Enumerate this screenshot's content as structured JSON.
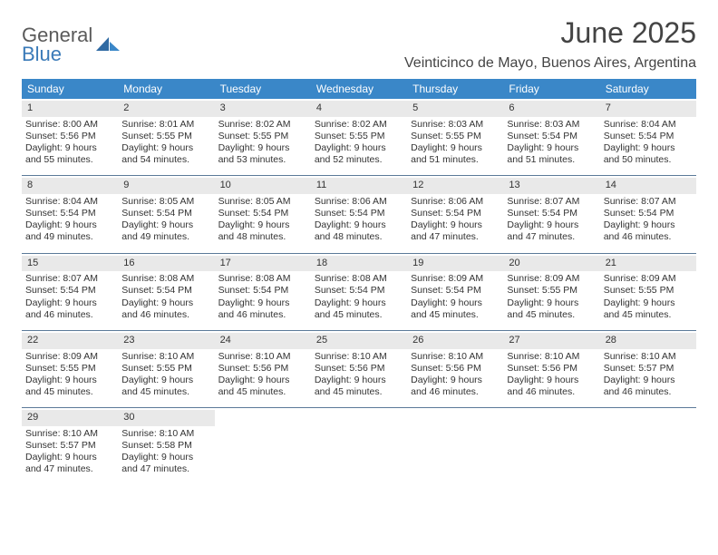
{
  "brand": {
    "line1": "General",
    "line2": "Blue",
    "color_gray": "#5a5a5a",
    "color_blue": "#3a7ab8"
  },
  "title": "June 2025",
  "location": "Veinticinco de Mayo, Buenos Aires, Argentina",
  "colors": {
    "header_bg": "#3a87c8",
    "header_fg": "#ffffff",
    "week_rule": "#5b7a99",
    "num_bg": "#e9e9e9",
    "page_bg": "#ffffff",
    "text": "#333333"
  },
  "weekdays": [
    "Sunday",
    "Monday",
    "Tuesday",
    "Wednesday",
    "Thursday",
    "Friday",
    "Saturday"
  ],
  "weeks": [
    [
      {
        "n": "1",
        "sr": "8:00 AM",
        "ss": "5:56 PM",
        "dl": "9 hours and 55 minutes."
      },
      {
        "n": "2",
        "sr": "8:01 AM",
        "ss": "5:55 PM",
        "dl": "9 hours and 54 minutes."
      },
      {
        "n": "3",
        "sr": "8:02 AM",
        "ss": "5:55 PM",
        "dl": "9 hours and 53 minutes."
      },
      {
        "n": "4",
        "sr": "8:02 AM",
        "ss": "5:55 PM",
        "dl": "9 hours and 52 minutes."
      },
      {
        "n": "5",
        "sr": "8:03 AM",
        "ss": "5:55 PM",
        "dl": "9 hours and 51 minutes."
      },
      {
        "n": "6",
        "sr": "8:03 AM",
        "ss": "5:54 PM",
        "dl": "9 hours and 51 minutes."
      },
      {
        "n": "7",
        "sr": "8:04 AM",
        "ss": "5:54 PM",
        "dl": "9 hours and 50 minutes."
      }
    ],
    [
      {
        "n": "8",
        "sr": "8:04 AM",
        "ss": "5:54 PM",
        "dl": "9 hours and 49 minutes."
      },
      {
        "n": "9",
        "sr": "8:05 AM",
        "ss": "5:54 PM",
        "dl": "9 hours and 49 minutes."
      },
      {
        "n": "10",
        "sr": "8:05 AM",
        "ss": "5:54 PM",
        "dl": "9 hours and 48 minutes."
      },
      {
        "n": "11",
        "sr": "8:06 AM",
        "ss": "5:54 PM",
        "dl": "9 hours and 48 minutes."
      },
      {
        "n": "12",
        "sr": "8:06 AM",
        "ss": "5:54 PM",
        "dl": "9 hours and 47 minutes."
      },
      {
        "n": "13",
        "sr": "8:07 AM",
        "ss": "5:54 PM",
        "dl": "9 hours and 47 minutes."
      },
      {
        "n": "14",
        "sr": "8:07 AM",
        "ss": "5:54 PM",
        "dl": "9 hours and 46 minutes."
      }
    ],
    [
      {
        "n": "15",
        "sr": "8:07 AM",
        "ss": "5:54 PM",
        "dl": "9 hours and 46 minutes."
      },
      {
        "n": "16",
        "sr": "8:08 AM",
        "ss": "5:54 PM",
        "dl": "9 hours and 46 minutes."
      },
      {
        "n": "17",
        "sr": "8:08 AM",
        "ss": "5:54 PM",
        "dl": "9 hours and 46 minutes."
      },
      {
        "n": "18",
        "sr": "8:08 AM",
        "ss": "5:54 PM",
        "dl": "9 hours and 45 minutes."
      },
      {
        "n": "19",
        "sr": "8:09 AM",
        "ss": "5:54 PM",
        "dl": "9 hours and 45 minutes."
      },
      {
        "n": "20",
        "sr": "8:09 AM",
        "ss": "5:55 PM",
        "dl": "9 hours and 45 minutes."
      },
      {
        "n": "21",
        "sr": "8:09 AM",
        "ss": "5:55 PM",
        "dl": "9 hours and 45 minutes."
      }
    ],
    [
      {
        "n": "22",
        "sr": "8:09 AM",
        "ss": "5:55 PM",
        "dl": "9 hours and 45 minutes."
      },
      {
        "n": "23",
        "sr": "8:10 AM",
        "ss": "5:55 PM",
        "dl": "9 hours and 45 minutes."
      },
      {
        "n": "24",
        "sr": "8:10 AM",
        "ss": "5:56 PM",
        "dl": "9 hours and 45 minutes."
      },
      {
        "n": "25",
        "sr": "8:10 AM",
        "ss": "5:56 PM",
        "dl": "9 hours and 45 minutes."
      },
      {
        "n": "26",
        "sr": "8:10 AM",
        "ss": "5:56 PM",
        "dl": "9 hours and 46 minutes."
      },
      {
        "n": "27",
        "sr": "8:10 AM",
        "ss": "5:56 PM",
        "dl": "9 hours and 46 minutes."
      },
      {
        "n": "28",
        "sr": "8:10 AM",
        "ss": "5:57 PM",
        "dl": "9 hours and 46 minutes."
      }
    ],
    [
      {
        "n": "29",
        "sr": "8:10 AM",
        "ss": "5:57 PM",
        "dl": "9 hours and 47 minutes."
      },
      {
        "n": "30",
        "sr": "8:10 AM",
        "ss": "5:58 PM",
        "dl": "9 hours and 47 minutes."
      },
      null,
      null,
      null,
      null,
      null
    ]
  ],
  "labels": {
    "sunrise": "Sunrise: ",
    "sunset": "Sunset: ",
    "daylight": "Daylight: "
  }
}
